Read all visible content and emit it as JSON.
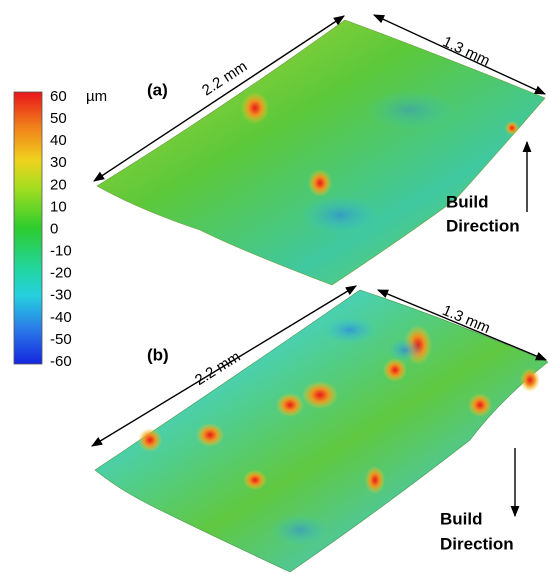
{
  "colorbar": {
    "unit": "µm",
    "ticks": [
      "60",
      "50",
      "40",
      "30",
      "20",
      "10",
      "0",
      "-10",
      "-20",
      "-30",
      "-40",
      "-50",
      "-60"
    ]
  },
  "panels": [
    {
      "label": "(a)",
      "length": "2.2 mm",
      "width": "1.3 mm",
      "build_direction": [
        "Build",
        "Direction"
      ]
    },
    {
      "label": "(b)",
      "length": "2.2 mm",
      "width": "1.3 mm",
      "build_direction": [
        "Build",
        "Direction"
      ]
    }
  ]
}
